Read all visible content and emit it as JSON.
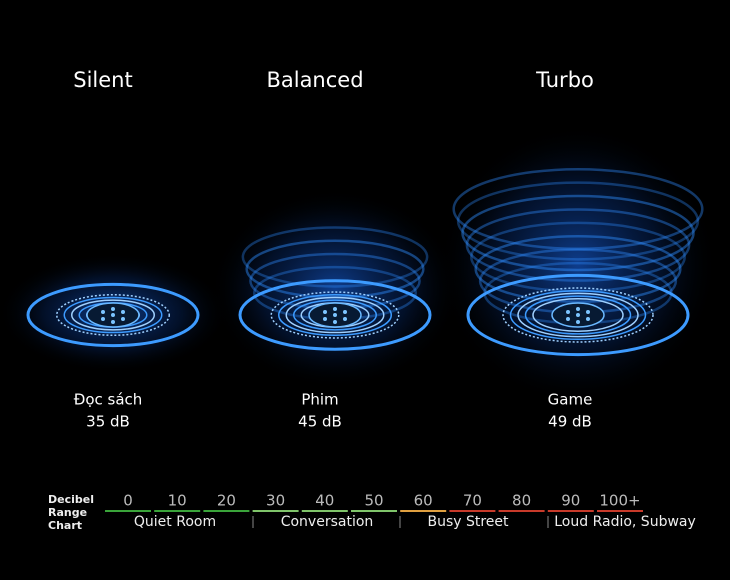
{
  "modes": [
    {
      "name": "Silent",
      "activity": "Đọc sách",
      "level": "35 dB"
    },
    {
      "name": "Balanced",
      "activity": "Phim",
      "level": "45 dB"
    },
    {
      "name": "Turbo",
      "activity": "Game",
      "level": "49 dB"
    }
  ],
  "decibel_chart": {
    "title": [
      "Decibel",
      "Range",
      "Chart"
    ],
    "ticks": [
      "0",
      "10",
      "20",
      "30",
      "40",
      "50",
      "60",
      "70",
      "80",
      "90",
      "100+"
    ],
    "ranges": [
      "Quiet Room",
      "Conversation",
      "Busy Street",
      "Loud Radio, Subway"
    ]
  }
}
